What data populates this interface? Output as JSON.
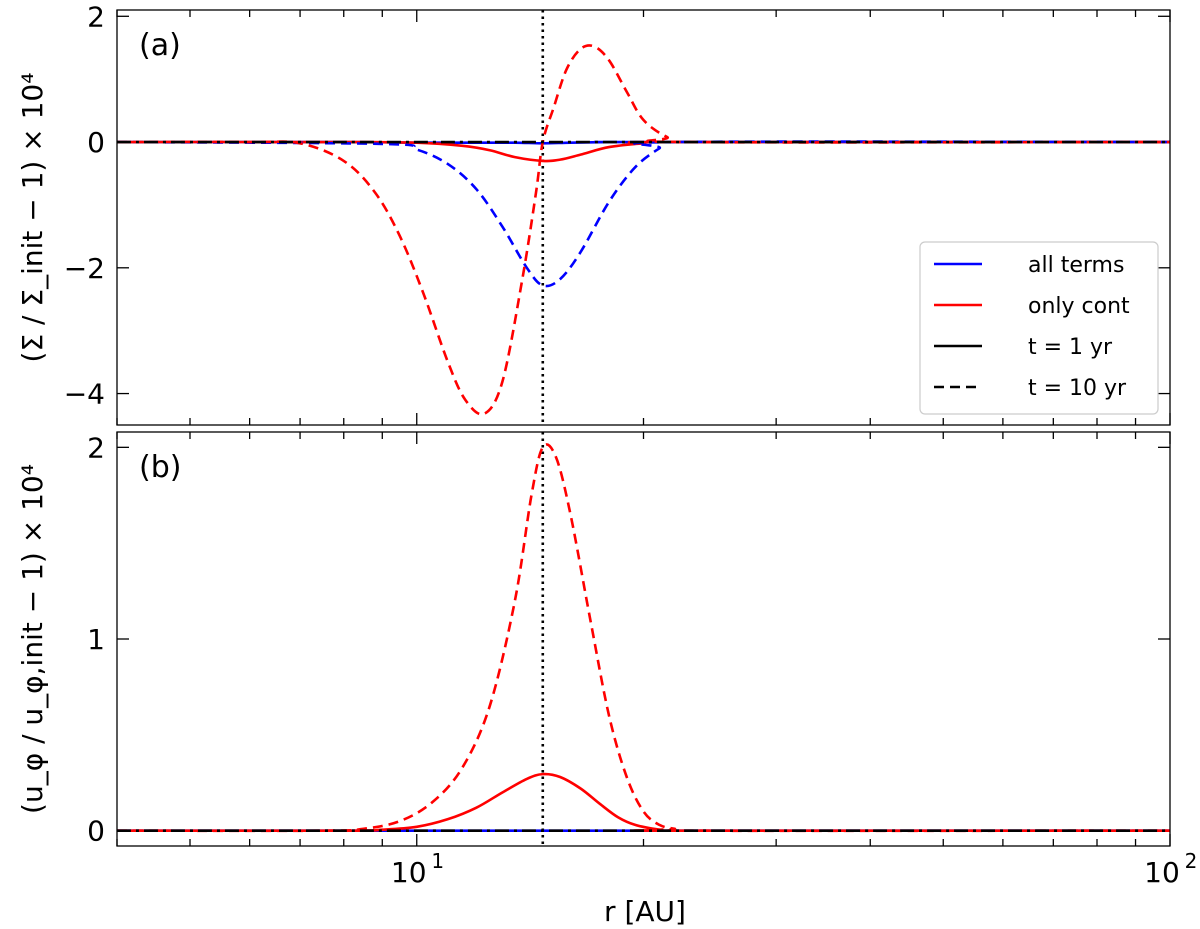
{
  "chart_data": [
    {
      "type": "line",
      "panel_label": "(a)",
      "ylabel": "(Σ / Σ_init − 1) × 10⁴",
      "xscale": "log",
      "xlim": [
        4,
        100
      ],
      "ylim": [
        -4.5,
        2.1
      ],
      "yticks": [
        2,
        0,
        -2,
        -4
      ],
      "ytick_labels": [
        "2",
        "0",
        "−2",
        "−4"
      ],
      "vline_x": 14.7,
      "legend": {
        "position": "lower-right",
        "entries": [
          {
            "label": "all terms",
            "color": "#0000ff",
            "style": "solid"
          },
          {
            "label": "only cont",
            "color": "#ff0000",
            "style": "solid"
          },
          {
            "label": "t = 1 yr",
            "color": "#000000",
            "style": "solid"
          },
          {
            "label": "t = 10 yr",
            "color": "#000000",
            "style": "dashed"
          }
        ]
      },
      "series": [
        {
          "color": "#0000ff",
          "style": "solid",
          "x": [
            4,
            8,
            10,
            12,
            13.5,
            14.7,
            16,
            18,
            20,
            100
          ],
          "y": [
            0,
            0,
            -0.01,
            -0.01,
            -0.01,
            -0.02,
            -0.01,
            0,
            0,
            0
          ]
        },
        {
          "color": "#ff0000",
          "style": "solid",
          "x": [
            4,
            8,
            10,
            11.5,
            12.5,
            13.5,
            14.7,
            15.5,
            16.5,
            18,
            20,
            22,
            100
          ],
          "y": [
            0,
            0,
            -0.01,
            -0.06,
            -0.13,
            -0.24,
            -0.3,
            -0.28,
            -0.2,
            -0.08,
            -0.02,
            0,
            0
          ]
        },
        {
          "color": "#0000ff",
          "style": "dashed",
          "x": [
            4,
            9,
            10,
            11,
            12,
            13,
            14,
            14.7,
            15.5,
            16.5,
            18,
            19.5,
            21,
            22,
            100
          ],
          "y": [
            0,
            -0.03,
            -0.12,
            -0.35,
            -0.75,
            -1.35,
            -2.0,
            -2.28,
            -2.18,
            -1.75,
            -0.95,
            -0.4,
            -0.1,
            0,
            0
          ]
        },
        {
          "color": "#ff0000",
          "style": "dashed",
          "x": [
            4,
            6,
            7,
            8,
            8.8,
            9.5,
            10.2,
            11,
            11.6,
            12.3,
            13,
            13.8,
            14.4,
            14.7,
            15.2,
            15.8,
            16.5,
            17.2,
            18,
            19,
            20,
            21.5,
            23,
            100
          ],
          "y": [
            0,
            0,
            -0.02,
            -0.3,
            -0.8,
            -1.5,
            -2.4,
            -3.5,
            -4.1,
            -4.32,
            -3.8,
            -2.2,
            -0.8,
            0,
            0.55,
            1.15,
            1.48,
            1.52,
            1.3,
            0.8,
            0.35,
            0.08,
            0,
            0
          ]
        },
        {
          "color": "#000000",
          "style": "dash-dot",
          "x": [
            4,
            100
          ],
          "y": [
            0,
            0
          ]
        }
      ]
    },
    {
      "type": "line",
      "panel_label": "(b)",
      "ylabel": "(u_φ / u_φ,init − 1) × 10⁴",
      "xlabel": "r [AU]",
      "xscale": "log",
      "xlim": [
        4,
        100
      ],
      "ylim": [
        -0.08,
        2.08
      ],
      "yticks": [
        2,
        1,
        0
      ],
      "ytick_labels": [
        "2",
        "1",
        "0"
      ],
      "xtick_labels": [
        {
          "value": 10,
          "base": "10",
          "exp": "1"
        },
        {
          "value": 100,
          "base": "10",
          "exp": "2"
        }
      ],
      "vline_x": 14.7,
      "series": [
        {
          "color": "#0000ff",
          "style": "solid",
          "x": [
            4,
            100
          ],
          "y": [
            0,
            0
          ]
        },
        {
          "color": "#ff0000",
          "style": "solid",
          "x": [
            4,
            8,
            9,
            10,
            11,
            12,
            13,
            14,
            14.7,
            15.5,
            16.5,
            17.5,
            18.5,
            19.5,
            21,
            22,
            100
          ],
          "y": [
            0,
            0,
            0.005,
            0.02,
            0.06,
            0.12,
            0.2,
            0.27,
            0.295,
            0.28,
            0.22,
            0.14,
            0.07,
            0.03,
            0.005,
            0,
            0
          ]
        },
        {
          "color": "#ff0000",
          "style": "dashed",
          "x": [
            4,
            7.5,
            8.5,
            9.5,
            10.5,
            11.5,
            12.5,
            13.5,
            14.2,
            14.7,
            15.3,
            16,
            17,
            18,
            19,
            20,
            21,
            22,
            23,
            100
          ],
          "y": [
            0,
            0,
            0.01,
            0.05,
            0.15,
            0.33,
            0.65,
            1.2,
            1.75,
            2.0,
            1.95,
            1.65,
            1.1,
            0.6,
            0.28,
            0.1,
            0.03,
            0.01,
            0,
            0
          ]
        },
        {
          "color": "#000000",
          "style": "dash-dot",
          "x": [
            4,
            100
          ],
          "y": [
            0,
            0
          ]
        }
      ]
    }
  ]
}
